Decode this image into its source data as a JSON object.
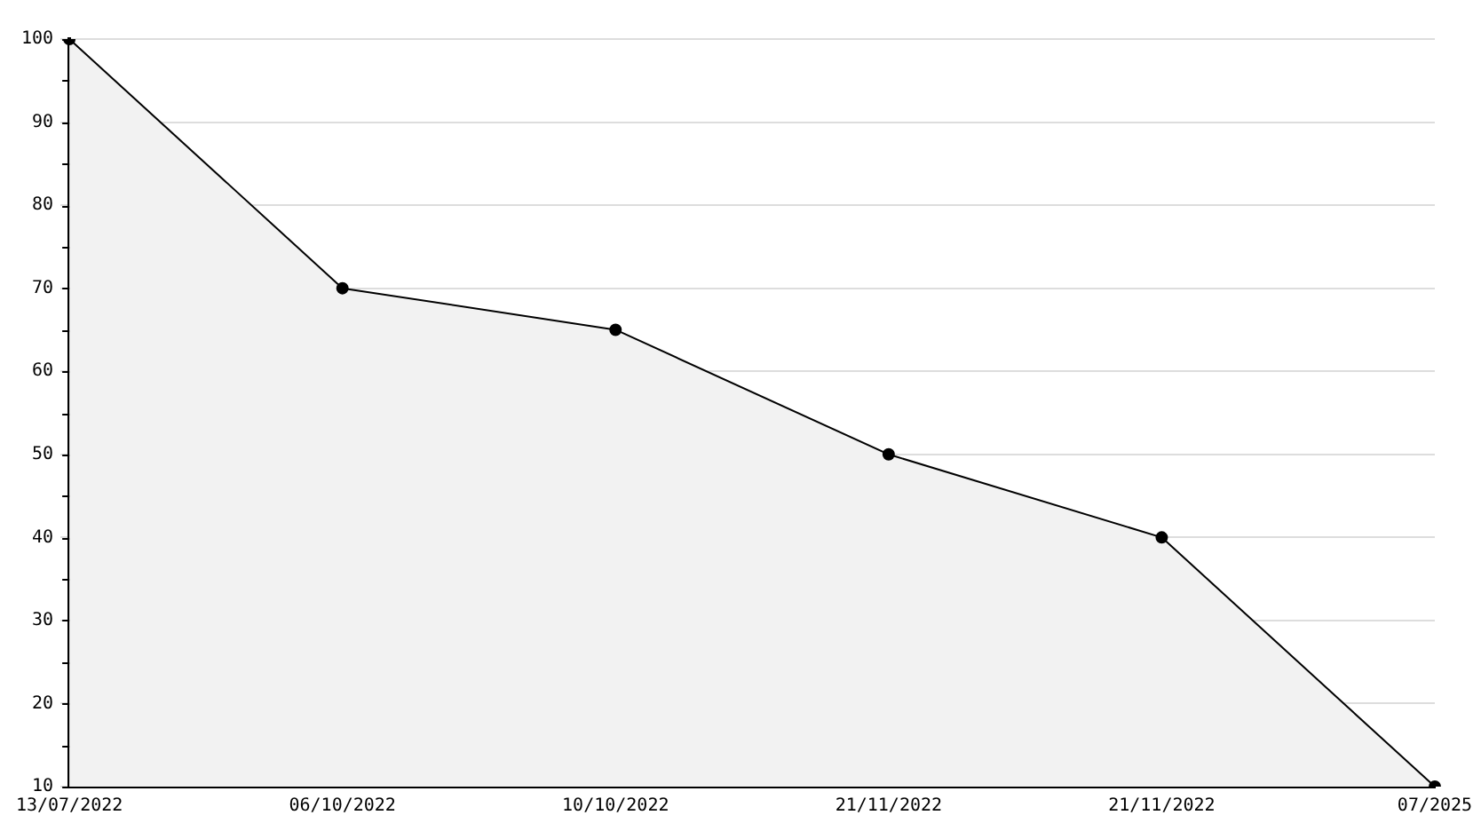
{
  "chart_data": {
    "type": "area",
    "categories": [
      "13/07/2022",
      "06/10/2022",
      "10/10/2022",
      "21/11/2022",
      "21/11/2022",
      "07/2025"
    ],
    "series": [
      {
        "color": "#000000",
        "values": [
          100,
          70,
          65,
          50,
          40,
          10
        ]
      }
    ],
    "ylim": [
      10,
      100
    ],
    "yticks": [
      10,
      {
        "value": 15,
        "label": null
      },
      20,
      {
        "value": 25,
        "label": null
      },
      30,
      {
        "value": 35,
        "label": null
      },
      40,
      {
        "value": 45,
        "label": null
      },
      50,
      {
        "value": 55,
        "label": null
      },
      60,
      {
        "value": 65,
        "label": null
      },
      70,
      {
        "value": 75,
        "label": null
      },
      80,
      {
        "value": 85,
        "label": null
      },
      90,
      {
        "value": 95,
        "label": null
      },
      100
    ],
    "grid": "y",
    "marker": "circle",
    "legend": false
  }
}
